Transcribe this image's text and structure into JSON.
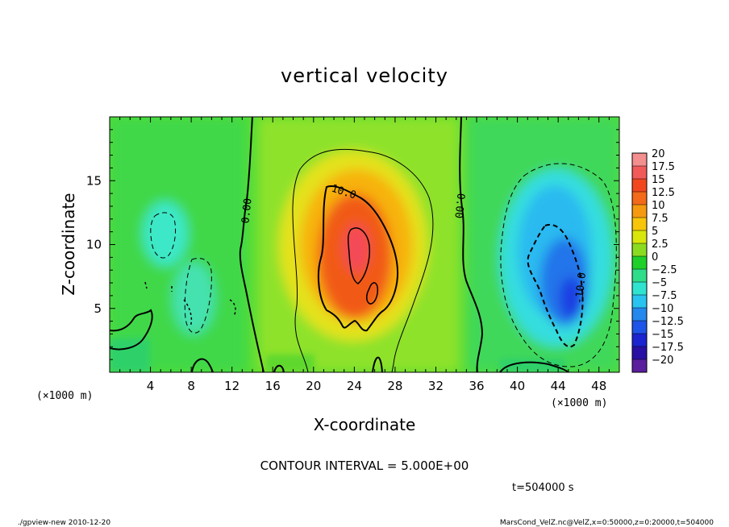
{
  "chart_data": {
    "type": "heatmap",
    "title": "vertical velocity",
    "xlabel": "X-coordinate",
    "ylabel": "Z-coordinate",
    "x_unit_label": "(×1000 m)",
    "x_unit_label_right": "(×1000 m)",
    "xlim": [
      0,
      50
    ],
    "ylim": [
      0,
      20
    ],
    "xticks": [
      4,
      8,
      12,
      16,
      20,
      24,
      28,
      32,
      36,
      40,
      44,
      48
    ],
    "yticks": [
      5,
      10,
      15
    ],
    "contour_interval_text": "CONTOUR INTERVAL = 5.000E+00",
    "time_text": "t=504000 s",
    "footer_left": "./gpview-new  2010-12-20",
    "footer_right": "MarsCond_VelZ.nc@VelZ,x=0:50000,z=0:20000,t=504000",
    "contour_labels": [
      "0.00",
      "10.0",
      "0.00",
      "-10.0"
    ],
    "colorbar": {
      "levels": [
        "20",
        "17.5",
        "15",
        "12.5",
        "10",
        "7.5",
        "5",
        "2.5",
        "0",
        "-2.5",
        "-5",
        "-7.5",
        "-10",
        "-12.5",
        "-15",
        "-17.5",
        "-20"
      ],
      "colors": [
        "#f48f8f",
        "#f25a5a",
        "#f2471e",
        "#f36a1a",
        "#f59a10",
        "#f7c50a",
        "#d8e60b",
        "#8bdc21",
        "#1fd02a",
        "#2fdc8a",
        "#2fe3cf",
        "#29c3f0",
        "#2488ee",
        "#1f54e8",
        "#1b24cf",
        "#2810a4",
        "#5a1e9e"
      ]
    }
  }
}
